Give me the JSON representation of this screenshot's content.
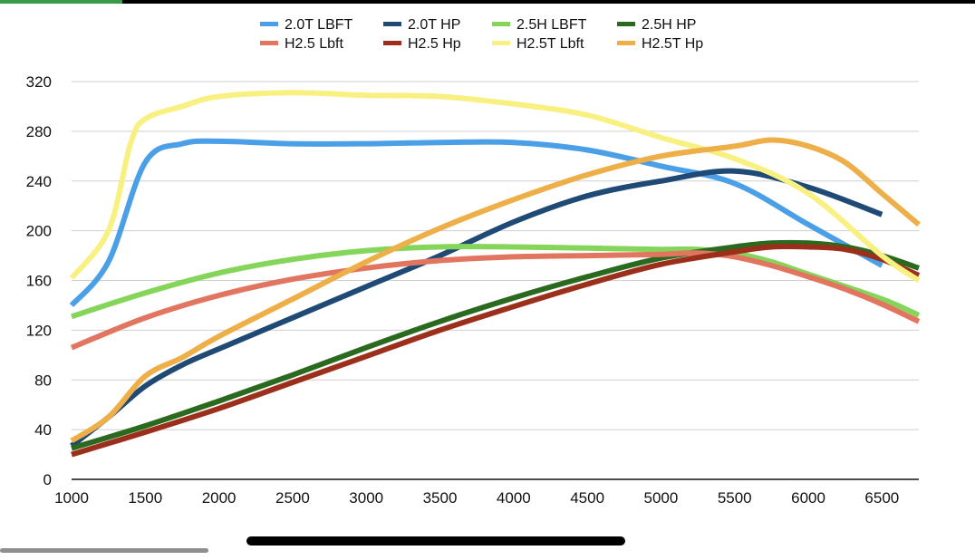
{
  "status_bar": {
    "progress": 0.125,
    "progress_color": "#3a9a4a"
  },
  "chart_data": {
    "type": "line",
    "title": "",
    "xlabel": "",
    "ylabel": "",
    "xlim": [
      1000,
      6750
    ],
    "ylim": [
      0,
      320
    ],
    "x_ticks": [
      "1000",
      "1500",
      "2000",
      "2500",
      "3000",
      "3500",
      "4000",
      "4500",
      "5000",
      "5500",
      "6000",
      "6500"
    ],
    "y_ticks": [
      "0",
      "40",
      "80",
      "120",
      "160",
      "200",
      "240",
      "280",
      "320"
    ],
    "grid": "horizontal",
    "legend_position": "top",
    "series": [
      {
        "name": "2.0T LBFT",
        "color": "#4a9fe6",
        "points": [
          [
            1000,
            140
          ],
          [
            1250,
            175
          ],
          [
            1500,
            255
          ],
          [
            1750,
            270
          ],
          [
            2000,
            272
          ],
          [
            2500,
            270
          ],
          [
            3000,
            270
          ],
          [
            3500,
            271
          ],
          [
            4000,
            271
          ],
          [
            4500,
            265
          ],
          [
            5000,
            252
          ],
          [
            5500,
            238
          ],
          [
            6000,
            205
          ],
          [
            6500,
            172
          ]
        ]
      },
      {
        "name": "2.0T HP",
        "color": "#1f4a76",
        "points": [
          [
            1000,
            27
          ],
          [
            1250,
            50
          ],
          [
            1500,
            75
          ],
          [
            1750,
            92
          ],
          [
            2000,
            105
          ],
          [
            2500,
            130
          ],
          [
            3000,
            155
          ],
          [
            3500,
            180
          ],
          [
            4000,
            207
          ],
          [
            4500,
            228
          ],
          [
            5000,
            240
          ],
          [
            5500,
            248
          ],
          [
            6000,
            235
          ],
          [
            6500,
            213
          ]
        ]
      },
      {
        "name": "2.5H LBFT",
        "color": "#85d55a",
        "points": [
          [
            1000,
            131
          ],
          [
            1500,
            150
          ],
          [
            2000,
            166
          ],
          [
            2500,
            177
          ],
          [
            3000,
            184
          ],
          [
            3500,
            187
          ],
          [
            4000,
            187
          ],
          [
            4500,
            186
          ],
          [
            5000,
            185
          ],
          [
            5250,
            185
          ],
          [
            5500,
            182
          ],
          [
            5750,
            175
          ],
          [
            6000,
            165
          ],
          [
            6500,
            145
          ],
          [
            6750,
            132
          ]
        ]
      },
      {
        "name": "2.5H HP",
        "color": "#2a6a1e",
        "points": [
          [
            1000,
            25
          ],
          [
            1500,
            43
          ],
          [
            2000,
            63
          ],
          [
            2500,
            84
          ],
          [
            3000,
            106
          ],
          [
            3500,
            127
          ],
          [
            4000,
            146
          ],
          [
            4500,
            163
          ],
          [
            5000,
            178
          ],
          [
            5500,
            187
          ],
          [
            5750,
            190
          ],
          [
            6000,
            190
          ],
          [
            6250,
            187
          ],
          [
            6500,
            180
          ],
          [
            6750,
            170
          ]
        ]
      },
      {
        "name": "H2.5 Lbft",
        "color": "#e27560",
        "points": [
          [
            1000,
            106
          ],
          [
            1500,
            130
          ],
          [
            2000,
            148
          ],
          [
            2500,
            161
          ],
          [
            3000,
            170
          ],
          [
            3500,
            176
          ],
          [
            4000,
            179
          ],
          [
            4500,
            180
          ],
          [
            5000,
            181
          ],
          [
            5250,
            182
          ],
          [
            5500,
            179
          ],
          [
            5750,
            172
          ],
          [
            6000,
            163
          ],
          [
            6250,
            153
          ],
          [
            6500,
            141
          ],
          [
            6750,
            127
          ]
        ]
      },
      {
        "name": "H2.5 Hp",
        "color": "#9c2f1c",
        "points": [
          [
            1000,
            20
          ],
          [
            1500,
            38
          ],
          [
            2000,
            57
          ],
          [
            2500,
            78
          ],
          [
            3000,
            99
          ],
          [
            3500,
            120
          ],
          [
            4000,
            139
          ],
          [
            4500,
            157
          ],
          [
            5000,
            173
          ],
          [
            5500,
            183
          ],
          [
            5750,
            187
          ],
          [
            6000,
            187
          ],
          [
            6250,
            185
          ],
          [
            6500,
            177
          ],
          [
            6750,
            164
          ]
        ]
      },
      {
        "name": "H2.5T Lbft",
        "color": "#f8f080",
        "points": [
          [
            1000,
            162
          ],
          [
            1250,
            200
          ],
          [
            1400,
            270
          ],
          [
            1500,
            290
          ],
          [
            1750,
            300
          ],
          [
            2000,
            308
          ],
          [
            2500,
            311
          ],
          [
            3000,
            309
          ],
          [
            3500,
            308
          ],
          [
            4000,
            302
          ],
          [
            4500,
            293
          ],
          [
            5000,
            275
          ],
          [
            5500,
            258
          ],
          [
            6000,
            230
          ],
          [
            6500,
            180
          ],
          [
            6750,
            160
          ]
        ]
      },
      {
        "name": "H2.5T Hp",
        "color": "#eeae48",
        "points": [
          [
            1000,
            31
          ],
          [
            1250,
            50
          ],
          [
            1500,
            83
          ],
          [
            1750,
            98
          ],
          [
            2000,
            115
          ],
          [
            2500,
            145
          ],
          [
            3000,
            175
          ],
          [
            3500,
            202
          ],
          [
            4000,
            225
          ],
          [
            4500,
            245
          ],
          [
            5000,
            260
          ],
          [
            5500,
            268
          ],
          [
            5750,
            273
          ],
          [
            6000,
            268
          ],
          [
            6250,
            255
          ],
          [
            6500,
            230
          ],
          [
            6750,
            205
          ]
        ]
      }
    ]
  }
}
